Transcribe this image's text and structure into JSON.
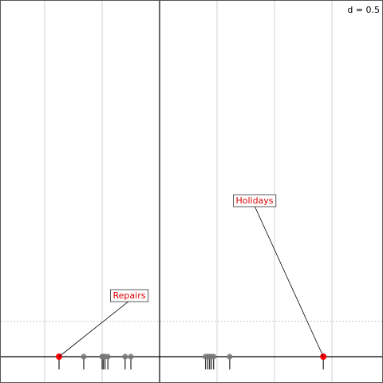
{
  "chart_data": {
    "type": "scatter",
    "title": "",
    "xlabel": "",
    "ylabel": "",
    "annotation": "d = 0.5",
    "xlim": [
      -2.75,
      1.9
    ],
    "ylim": [
      -0.08,
      1.0
    ],
    "grid": {
      "vertical": true,
      "horizontal": false
    },
    "reference_y": 0.1,
    "points": [
      {
        "x": -1.75,
        "highlight": true,
        "label": "Repairs"
      },
      {
        "x": -1.32,
        "highlight": false,
        "label": ""
      },
      {
        "x": -1.0,
        "highlight": false,
        "label": ""
      },
      {
        "x": -0.98,
        "highlight": false,
        "label": ""
      },
      {
        "x": -0.95,
        "highlight": false,
        "label": ""
      },
      {
        "x": -0.9,
        "highlight": false,
        "label": ""
      },
      {
        "x": -0.6,
        "highlight": false,
        "label": ""
      },
      {
        "x": -0.5,
        "highlight": false,
        "label": ""
      },
      {
        "x": 0.8,
        "highlight": false,
        "label": ""
      },
      {
        "x": 0.84,
        "highlight": false,
        "label": ""
      },
      {
        "x": 0.87,
        "highlight": false,
        "label": ""
      },
      {
        "x": 0.9,
        "highlight": false,
        "label": ""
      },
      {
        "x": 0.94,
        "highlight": false,
        "label": ""
      },
      {
        "x": 1.22,
        "highlight": false,
        "label": ""
      },
      {
        "x": 2.85,
        "highlight": true,
        "label": "Holidays"
      }
    ]
  },
  "colors": {
    "highlight": "#ff0000",
    "point": "#777777",
    "label_text": "#dd0000"
  }
}
